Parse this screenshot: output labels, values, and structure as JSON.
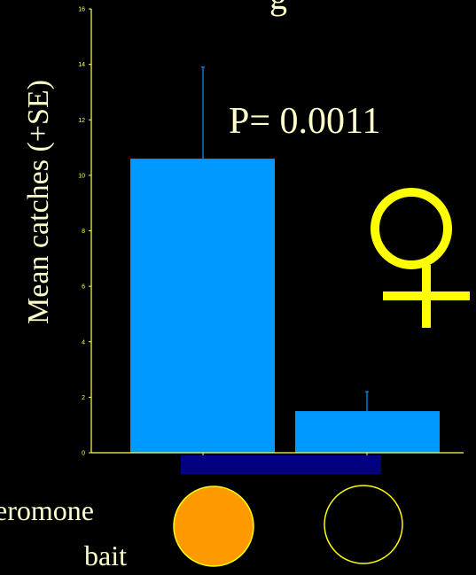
{
  "chart_data": {
    "type": "bar",
    "title_partial": "g",
    "ylabel": "Mean catches (+SE)",
    "xlabel": "",
    "ylim": [
      0,
      16
    ],
    "y_ticks": [
      0,
      2,
      4,
      6,
      8,
      10,
      12,
      14,
      16
    ],
    "categories": [
      "",
      ""
    ],
    "values": [
      10.6,
      1.5
    ],
    "errors": [
      3.3,
      0.7
    ],
    "grid": false,
    "annotations": {
      "p_value": "P= 0.0011",
      "female_symbol": "♀"
    },
    "category_key_text_line1": "eromone",
    "category_key_text_line2": "bait",
    "colors": {
      "background": "#000000",
      "bar": "#0099ff",
      "error_bar": "#0099ff",
      "axis": "#ffff66",
      "female_symbol": "#ffff00",
      "text": "#ffffcc",
      "key_bar": "#000080",
      "circle_filled": "#ff9900",
      "circle_outline": "#ffff00"
    }
  }
}
